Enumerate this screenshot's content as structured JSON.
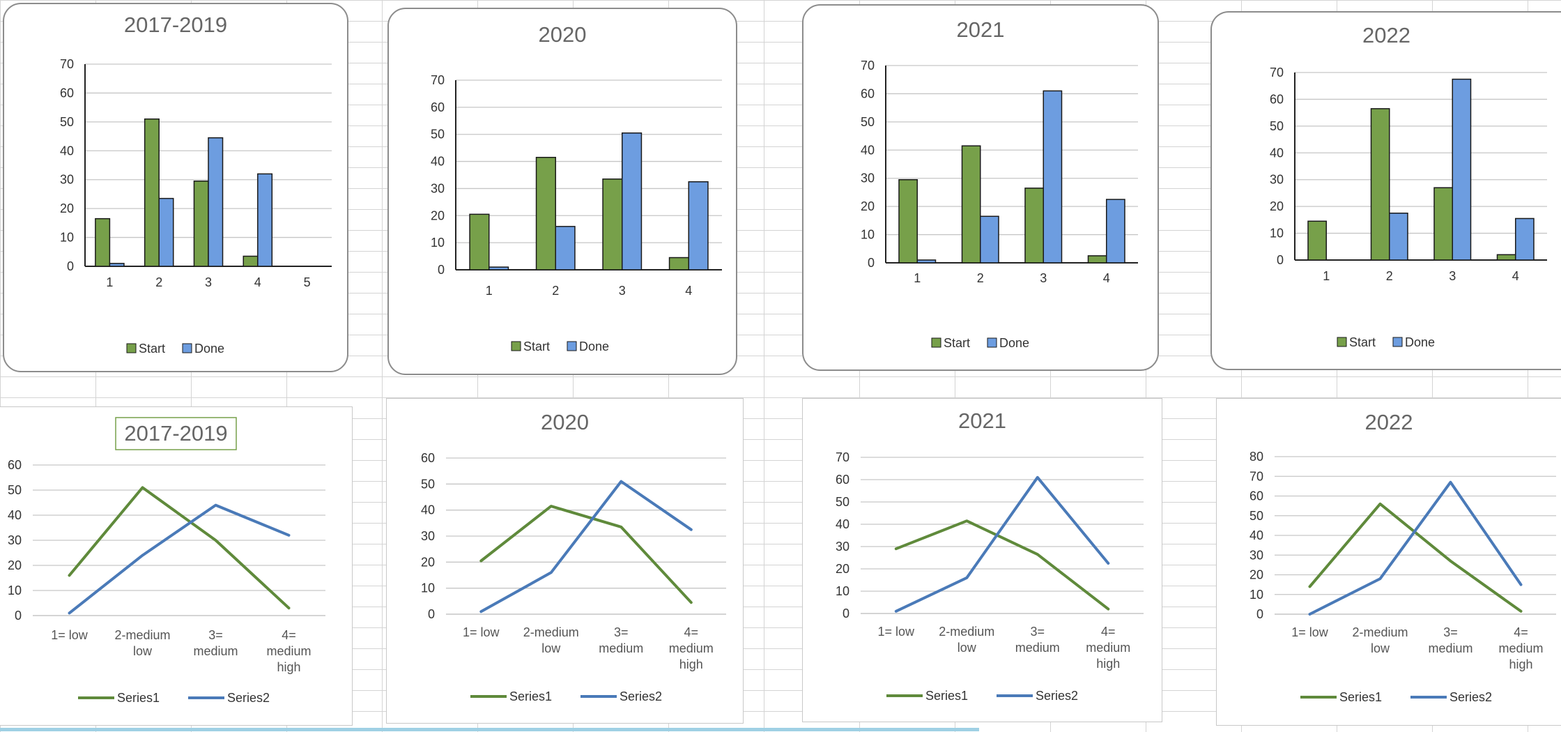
{
  "colors": {
    "start": "#77a04a",
    "done": "#6d9de0",
    "series1": "#5f8a3b",
    "series2": "#4a7ab8",
    "grid": "#c6c6c6",
    "axis": "#222222"
  },
  "legend": {
    "bar": [
      "Start",
      "Done"
    ],
    "line": [
      "Series1",
      "Series2"
    ]
  },
  "chart_data": [
    {
      "id": "bar-2017",
      "type": "bar",
      "title": "2017-2019",
      "categories": [
        "1",
        "2",
        "3",
        "4",
        "5"
      ],
      "ylim": [
        0,
        70
      ],
      "step": 10,
      "series": [
        {
          "name": "Start",
          "values": [
            16.5,
            51,
            29.5,
            3.5,
            0
          ]
        },
        {
          "name": "Done",
          "values": [
            1,
            23.5,
            44.5,
            32,
            0
          ]
        }
      ]
    },
    {
      "id": "bar-2020",
      "type": "bar",
      "title": "2020",
      "categories": [
        "1",
        "2",
        "3",
        "4"
      ],
      "ylim": [
        0,
        70
      ],
      "step": 10,
      "series": [
        {
          "name": "Start",
          "values": [
            20.5,
            41.5,
            33.5,
            4.5
          ]
        },
        {
          "name": "Done",
          "values": [
            1,
            16,
            50.5,
            32.5
          ]
        }
      ]
    },
    {
      "id": "bar-2021",
      "type": "bar",
      "title": "2021",
      "categories": [
        "1",
        "2",
        "3",
        "4"
      ],
      "ylim": [
        0,
        70
      ],
      "step": 10,
      "series": [
        {
          "name": "Start",
          "values": [
            29.5,
            41.5,
            26.5,
            2.5
          ]
        },
        {
          "name": "Done",
          "values": [
            1,
            16.5,
            61,
            22.5
          ]
        }
      ]
    },
    {
      "id": "bar-2022",
      "type": "bar",
      "title": "2022",
      "categories": [
        "1",
        "2",
        "3",
        "4"
      ],
      "ylim": [
        0,
        70
      ],
      "step": 10,
      "series": [
        {
          "name": "Start",
          "values": [
            14.5,
            56.5,
            27,
            2
          ]
        },
        {
          "name": "Done",
          "values": [
            0,
            17.5,
            67.5,
            15.5
          ]
        }
      ]
    },
    {
      "id": "line-2017",
      "type": "line",
      "title": "2017-2019",
      "title_boxed": true,
      "categories": [
        [
          "1= low"
        ],
        [
          "2-medium",
          "low"
        ],
        [
          "3=",
          "medium"
        ],
        [
          "4=",
          "medium",
          "high"
        ]
      ],
      "ylim": [
        0,
        60
      ],
      "step": 10,
      "series": [
        {
          "name": "Series1",
          "values": [
            16,
            51,
            30,
            3
          ]
        },
        {
          "name": "Series2",
          "values": [
            1,
            24,
            44,
            32
          ]
        }
      ]
    },
    {
      "id": "line-2020",
      "type": "line",
      "title": "2020",
      "categories": [
        [
          "1= low"
        ],
        [
          "2-medium",
          "low"
        ],
        [
          "3=",
          "medium"
        ],
        [
          "4=",
          "medium",
          "high"
        ]
      ],
      "ylim": [
        0,
        60
      ],
      "step": 10,
      "series": [
        {
          "name": "Series1",
          "values": [
            20.5,
            41.5,
            33.5,
            4.5
          ]
        },
        {
          "name": "Series2",
          "values": [
            1,
            16,
            51,
            32.5
          ]
        }
      ]
    },
    {
      "id": "line-2021",
      "type": "line",
      "title": "2021",
      "categories": [
        [
          "1= low"
        ],
        [
          "2-medium",
          "low"
        ],
        [
          "3=",
          "medium"
        ],
        [
          "4=",
          "medium",
          "high"
        ]
      ],
      "ylim": [
        0,
        70
      ],
      "step": 10,
      "series": [
        {
          "name": "Series1",
          "values": [
            29,
            41.5,
            26.5,
            2
          ]
        },
        {
          "name": "Series2",
          "values": [
            1,
            16,
            61,
            22.5
          ]
        }
      ]
    },
    {
      "id": "line-2022",
      "type": "line",
      "title": "2022",
      "categories": [
        [
          "1= low"
        ],
        [
          "2-medium",
          "low"
        ],
        [
          "3=",
          "medium"
        ],
        [
          "4=",
          "medium",
          "high"
        ]
      ],
      "ylim": [
        0,
        80
      ],
      "step": 10,
      "series": [
        {
          "name": "Series1",
          "values": [
            14,
            56,
            27,
            1.5
          ]
        },
        {
          "name": "Series2",
          "values": [
            0,
            18,
            67,
            15
          ]
        }
      ]
    }
  ]
}
